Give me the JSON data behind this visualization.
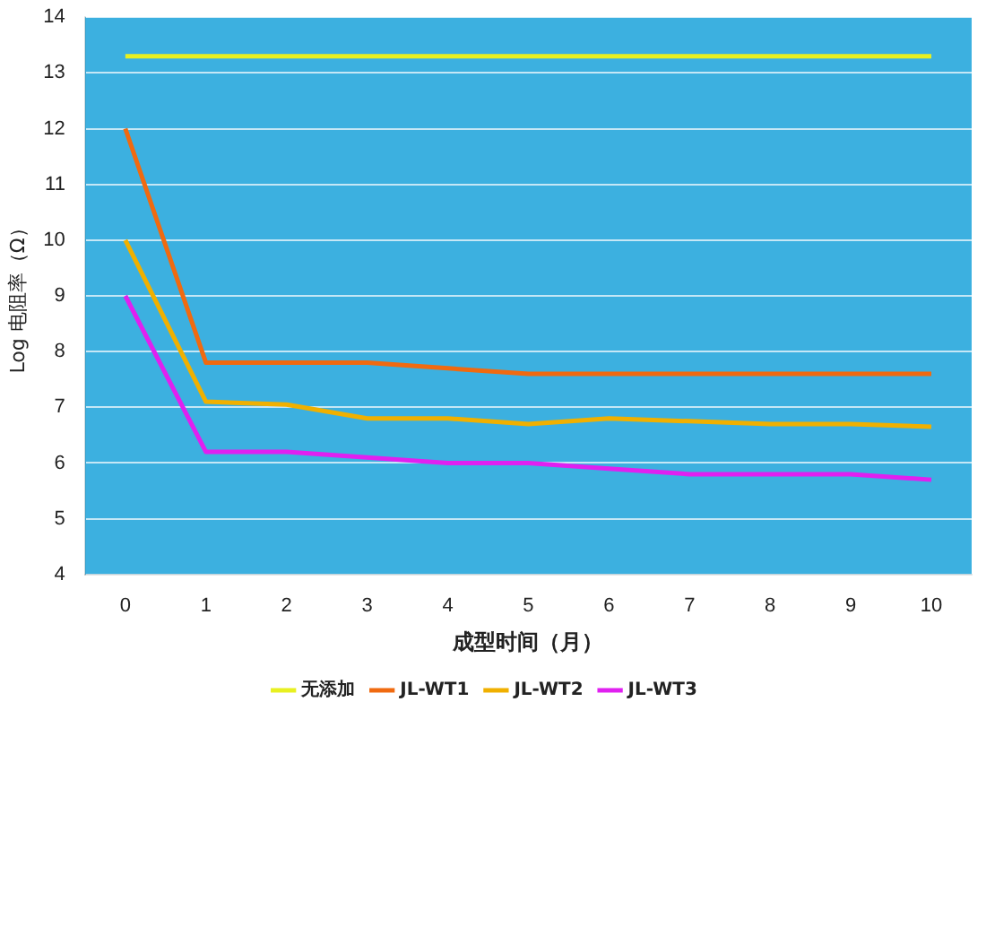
{
  "chart_data": {
    "type": "line",
    "xlabel": "成型时间（月）",
    "ylabel": "Log 电阻率（Ω）",
    "categories": [
      "0",
      "1",
      "2",
      "3",
      "4",
      "5",
      "6",
      "7",
      "8",
      "9",
      "10"
    ],
    "series": [
      {
        "name": "无添加",
        "color": "#e8f020",
        "values": [
          13.3,
          13.3,
          13.3,
          13.3,
          13.3,
          13.3,
          13.3,
          13.3,
          13.3,
          13.3,
          13.3
        ]
      },
      {
        "name": "JL-WT1",
        "color": "#f06a10",
        "values": [
          12,
          7.8,
          7.8,
          7.8,
          7.7,
          7.6,
          7.6,
          7.6,
          7.6,
          7.6,
          7.6
        ]
      },
      {
        "name": "JL-WT2",
        "color": "#f0b000",
        "values": [
          10,
          7.1,
          7.05,
          6.8,
          6.8,
          6.7,
          6.8,
          6.75,
          6.7,
          6.7,
          6.65
        ]
      },
      {
        "name": "JL-WT3",
        "color": "#e020f0",
        "values": [
          9,
          6.2,
          6.2,
          6.1,
          6,
          6,
          5.9,
          5.8,
          5.8,
          5.8,
          5.7
        ]
      }
    ],
    "ylim": [
      4,
      14
    ],
    "yticks": [
      4,
      5,
      6,
      7,
      8,
      9,
      10,
      11,
      12,
      13,
      14
    ],
    "grid": "y",
    "legend": "bottom",
    "marker": "none",
    "line_style": "solid"
  }
}
